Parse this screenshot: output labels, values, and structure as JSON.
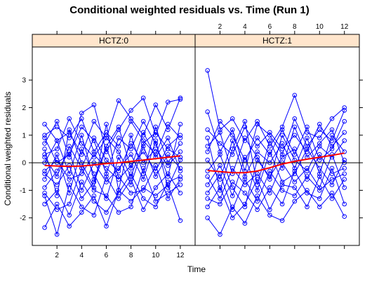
{
  "chart_data": {
    "type": "line",
    "title": "Conditional weighted residuals vs. Time (Run 1)",
    "xlabel": "Time",
    "ylabel": "Conditional weighted residuals",
    "xlim": [
      0,
      13.2
    ],
    "ylim": [
      -3,
      4.2
    ],
    "x_ticks": [
      2,
      4,
      6,
      8,
      10,
      12
    ],
    "y_ticks": [
      -2,
      -1,
      0,
      1,
      2,
      3
    ],
    "reference_line_y": 0,
    "colors": {
      "points": "#0000ff",
      "smooth": "#ff0000",
      "strip": "#ffe5cc",
      "refline": "#000000"
    },
    "panels": [
      {
        "strip": "HCTZ:0",
        "smooth": {
          "x": [
            1,
            2,
            3,
            4,
            5,
            6,
            7,
            8,
            9,
            10,
            11,
            12
          ],
          "y": [
            -0.1,
            -0.12,
            -0.13,
            -0.12,
            -0.08,
            -0.03,
            0.0,
            0.05,
            0.1,
            0.15,
            0.2,
            0.25
          ]
        },
        "subjects": [
          {
            "x": [
              1,
              2,
              3,
              4,
              5,
              6,
              7,
              8,
              9,
              10,
              11,
              12
            ],
            "y": [
              1.4,
              0.8,
              1.1,
              0.3,
              1.5,
              0.9,
              2.25,
              1.6,
              1.0,
              2.1,
              1.2,
              2.35
            ]
          },
          {
            "x": [
              1,
              2,
              3,
              4,
              5,
              6,
              7,
              8,
              9,
              10,
              11,
              12
            ],
            "y": [
              -2.35,
              -1.5,
              -2.3,
              -1.8,
              -1.2,
              -2.3,
              -1.0,
              -1.4,
              -0.9,
              -1.2,
              -0.8,
              -2.1
            ]
          },
          {
            "x": [
              1,
              2,
              3,
              4,
              5,
              6,
              7,
              8,
              9,
              10,
              11,
              12
            ],
            "y": [
              0.7,
              1.5,
              0.2,
              1.8,
              2.1,
              0.4,
              1.2,
              1.9,
              2.35,
              1.0,
              2.2,
              2.3
            ]
          },
          {
            "x": [
              1,
              2,
              3,
              4,
              5,
              6,
              7,
              8,
              9,
              10,
              11,
              12
            ],
            "y": [
              -1.2,
              -2.6,
              -0.8,
              -1.6,
              -1.9,
              -0.5,
              -1.3,
              -0.6,
              -1.7,
              -0.9,
              -0.4,
              -1.1
            ]
          },
          {
            "x": [
              1,
              2,
              3,
              4,
              5,
              6,
              7,
              8,
              9,
              10,
              11,
              12
            ],
            "y": [
              0.2,
              -0.5,
              0.6,
              -0.2,
              0.9,
              0.1,
              -0.3,
              0.7,
              0.0,
              0.5,
              -0.1,
              0.4
            ]
          },
          {
            "x": [
              1,
              2,
              3,
              4,
              5,
              6,
              7,
              8,
              9,
              10,
              11,
              12
            ],
            "y": [
              -0.6,
              0.3,
              -1.1,
              0.5,
              -0.4,
              -1.3,
              0.2,
              -0.8,
              0.6,
              -0.5,
              0.3,
              -0.2
            ]
          },
          {
            "x": [
              1,
              2,
              3,
              4,
              5,
              6,
              7,
              8,
              9,
              10,
              11,
              12
            ],
            "y": [
              1.0,
              1.3,
              0.9,
              1.6,
              0.4,
              1.1,
              0.6,
              1.5,
              0.8,
              0.3,
              1.4,
              0.9
            ]
          },
          {
            "x": [
              1,
              2,
              3,
              4,
              5,
              6,
              7,
              8,
              9,
              10,
              11,
              12
            ],
            "y": [
              -1.5,
              -1.0,
              -1.9,
              -0.7,
              -1.4,
              -1.8,
              -1.1,
              -0.4,
              -1.3,
              -1.6,
              -0.7,
              -0.5
            ]
          },
          {
            "x": [
              1,
              2,
              3,
              4,
              5,
              6,
              7,
              8,
              9,
              10,
              11,
              12
            ],
            "y": [
              0.0,
              0.8,
              -0.4,
              1.0,
              -0.6,
              0.6,
              1.3,
              -0.2,
              1.1,
              0.2,
              0.9,
              -0.3
            ]
          },
          {
            "x": [
              1,
              2,
              3,
              4,
              5,
              6,
              7,
              8,
              9,
              10,
              11,
              12
            ],
            "y": [
              -0.9,
              -0.3,
              0.4,
              -1.0,
              0.0,
              -0.7,
              -0.2,
              0.3,
              -0.6,
              0.8,
              -0.9,
              0.1
            ]
          },
          {
            "x": [
              1,
              2,
              3,
              4,
              5,
              6,
              7,
              8,
              9,
              10,
              11,
              12
            ],
            "y": [
              0.5,
              -1.2,
              1.2,
              0.0,
              -0.9,
              1.4,
              -1.0,
              1.0,
              -0.4,
              1.3,
              0.0,
              0.7
            ]
          },
          {
            "x": [
              1,
              2,
              3,
              4,
              5,
              6,
              7,
              8,
              9,
              10,
              11,
              12
            ],
            "y": [
              -0.3,
              0.1,
              -0.6,
              -0.4,
              0.3,
              -0.2,
              -0.6,
              -0.1,
              0.4,
              -0.3,
              0.6,
              1.0
            ]
          },
          {
            "x": [
              1,
              2,
              3,
              4,
              5,
              6,
              7,
              8,
              9,
              10,
              11,
              12
            ],
            "y": [
              0.9,
              0.0,
              0.3,
              1.3,
              0.8,
              -0.4,
              0.9,
              0.5,
              1.5,
              0.7,
              -0.5,
              1.4
            ]
          },
          {
            "x": [
              1,
              2,
              3,
              4,
              5,
              6,
              7,
              8,
              9,
              10,
              11,
              12
            ],
            "y": [
              -1.1,
              -1.7,
              -1.5,
              -0.2,
              -1.0,
              -1.2,
              -1.8,
              -1.6,
              -0.2,
              -1.4,
              -1.1,
              -0.8
            ]
          },
          {
            "x": [
              1,
              2,
              3,
              4,
              5,
              6,
              7,
              8,
              9,
              10,
              11,
              12
            ],
            "y": [
              0.3,
              0.5,
              1.6,
              0.7,
              0.2,
              0.9,
              0.4,
              -0.5,
              0.7,
              1.1,
              0.5,
              0.2
            ]
          },
          {
            "x": [
              1,
              2,
              3,
              4,
              5,
              6,
              7,
              8,
              9,
              10,
              11,
              12
            ],
            "y": [
              -0.4,
              -0.8,
              -0.1,
              -1.3,
              -0.7,
              0.5,
              -0.5,
              -1.1,
              -1.0,
              -0.1,
              -1.3,
              -0.6
            ]
          }
        ]
      },
      {
        "strip": "HCTZ:1",
        "smooth": {
          "x": [
            1,
            2,
            3,
            4,
            5,
            6,
            7,
            8,
            9,
            10,
            11,
            12
          ],
          "y": [
            -0.28,
            -0.32,
            -0.36,
            -0.36,
            -0.3,
            -0.18,
            -0.05,
            0.05,
            0.13,
            0.2,
            0.27,
            0.35
          ]
        },
        "subjects": [
          {
            "x": [
              1,
              2,
              3,
              4,
              5,
              6,
              7,
              8,
              9,
              10,
              11,
              12
            ],
            "y": [
              3.35,
              1.2,
              1.6,
              0.8,
              1.5,
              0.6,
              1.3,
              2.45,
              1.1,
              0.9,
              1.6,
              2.0
            ]
          },
          {
            "x": [
              1,
              2,
              3,
              4,
              5,
              6,
              7,
              8,
              9,
              10,
              11,
              12
            ],
            "y": [
              -2.0,
              -2.6,
              -1.6,
              -2.2,
              -1.2,
              -1.9,
              -2.1,
              -1.4,
              -1.0,
              -1.6,
              -1.1,
              -1.95
            ]
          },
          {
            "x": [
              1,
              2,
              3,
              4,
              5,
              6,
              7,
              8,
              9,
              10,
              11,
              12
            ],
            "y": [
              1.85,
              0.4,
              1.2,
              -0.3,
              1.4,
              1.0,
              0.3,
              1.6,
              0.6,
              1.2,
              0.8,
              1.9
            ]
          },
          {
            "x": [
              1,
              2,
              3,
              4,
              5,
              6,
              7,
              8,
              9,
              10,
              11,
              12
            ],
            "y": [
              -1.6,
              -0.9,
              -2.0,
              -1.5,
              -0.6,
              -1.7,
              -0.8,
              -0.9,
              -1.6,
              -0.5,
              -1.3,
              -0.6
            ]
          },
          {
            "x": [
              1,
              2,
              3,
              4,
              5,
              6,
              7,
              8,
              9,
              10,
              11,
              12
            ],
            "y": [
              0.6,
              1.1,
              -0.4,
              0.9,
              0.2,
              -0.6,
              1.0,
              0.1,
              -0.3,
              0.6,
              0.2,
              0.8
            ]
          },
          {
            "x": [
              1,
              2,
              3,
              4,
              5,
              6,
              7,
              8,
              9,
              10,
              11,
              12
            ],
            "y": [
              -0.8,
              -0.1,
              -1.2,
              0.2,
              -1.0,
              0.4,
              -0.7,
              -0.4,
              0.5,
              -0.2,
              -0.8,
              0.1
            ]
          },
          {
            "x": [
              1,
              2,
              3,
              4,
              5,
              6,
              7,
              8,
              9,
              10,
              11,
              12
            ],
            "y": [
              1.2,
              0.7,
              0.3,
              1.3,
              0.6,
              1.1,
              0.5,
              1.0,
              0.4,
              1.4,
              0.6,
              1.1
            ]
          },
          {
            "x": [
              1,
              2,
              3,
              4,
              5,
              6,
              7,
              8,
              9,
              10,
              11,
              12
            ],
            "y": [
              -1.3,
              -1.5,
              -0.7,
              -1.1,
              -1.7,
              -0.9,
              -1.5,
              -0.3,
              -1.1,
              -1.3,
              -0.2,
              -1.5
            ]
          },
          {
            "x": [
              1,
              2,
              3,
              4,
              5,
              6,
              7,
              8,
              9,
              10,
              11,
              12
            ],
            "y": [
              0.1,
              -0.6,
              0.8,
              -0.5,
              0.4,
              0.0,
              0.7,
              -0.2,
              0.9,
              -0.4,
              1.0,
              0.4
            ]
          },
          {
            "x": [
              1,
              2,
              3,
              4,
              5,
              6,
              7,
              8,
              9,
              10,
              11,
              12
            ],
            "y": [
              -0.3,
              0.3,
              -0.9,
              -1.6,
              0.1,
              -0.5,
              0.2,
              0.5,
              -0.6,
              0.3,
              -0.4,
              -0.2
            ]
          },
          {
            "x": [
              1,
              2,
              3,
              4,
              5,
              6,
              7,
              8,
              9,
              10,
              11,
              12
            ],
            "y": [
              0.9,
              -1.0,
              0.5,
              1.5,
              -0.8,
              0.8,
              -0.2,
              1.3,
              0.2,
              0.7,
              1.2,
              0.0
            ]
          },
          {
            "x": [
              1,
              2,
              3,
              4,
              5,
              6,
              7,
              8,
              9,
              10,
              11,
              12
            ],
            "y": [
              -0.5,
              -1.3,
              -0.2,
              -0.8,
              -0.4,
              -1.1,
              0.0,
              -0.7,
              -0.2,
              -0.9,
              0.3,
              -0.9
            ]
          },
          {
            "x": [
              1,
              2,
              3,
              4,
              5,
              6,
              7,
              8,
              9,
              10,
              11,
              12
            ],
            "y": [
              0.4,
              1.5,
              1.0,
              0.1,
              0.9,
              0.3,
              1.2,
              0.3,
              1.3,
              0.1,
              0.5,
              1.5
            ]
          },
          {
            "x": [
              1,
              2,
              3,
              4,
              5,
              6,
              7,
              8,
              9,
              10,
              11,
              12
            ],
            "y": [
              -1.1,
              -0.4,
              -1.7,
              -0.6,
              -1.4,
              -0.3,
              -1.0,
              -1.2,
              -0.5,
              -1.0,
              -0.6,
              -0.4
            ]
          }
        ]
      }
    ]
  }
}
